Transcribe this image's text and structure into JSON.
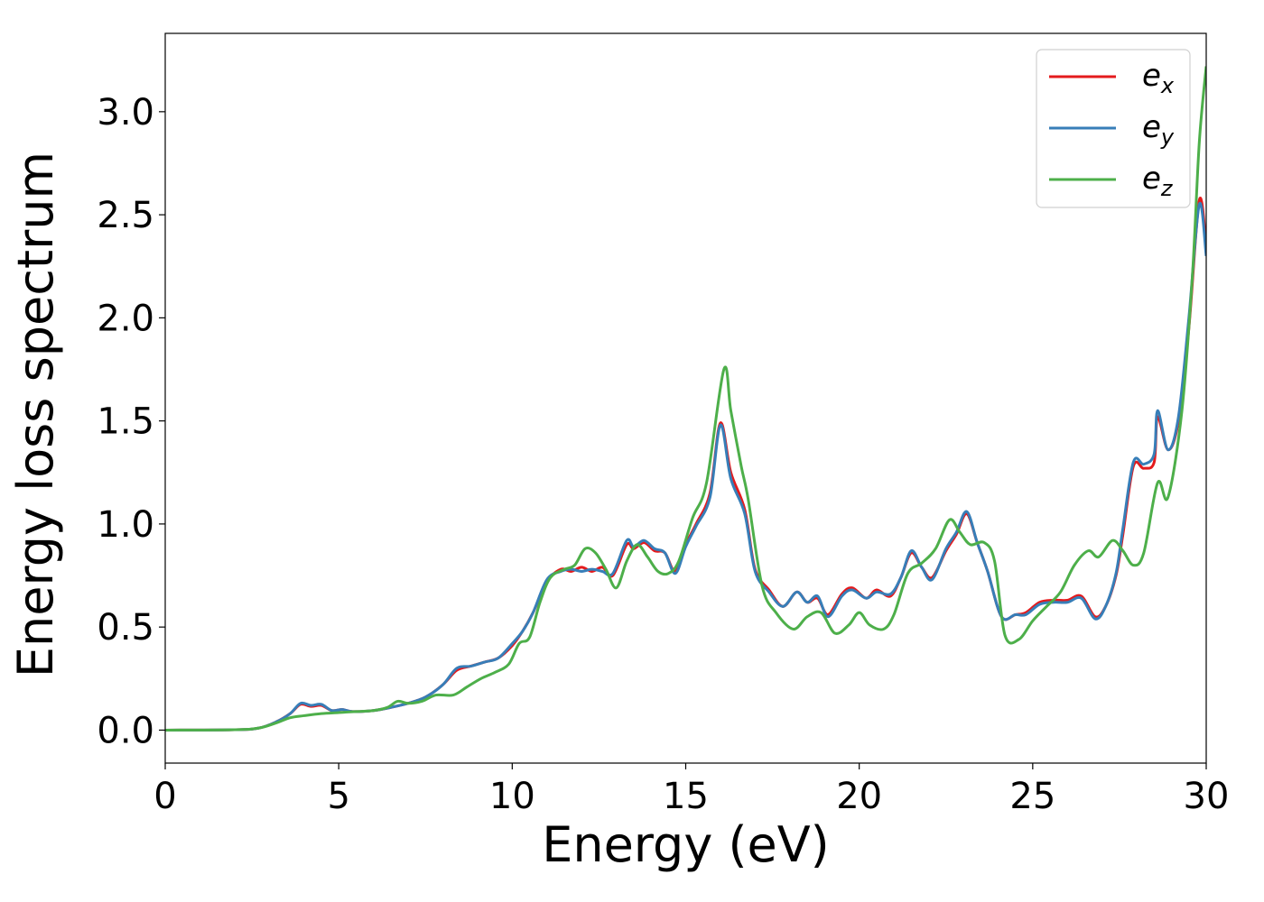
{
  "chart_data": {
    "type": "line",
    "title": "",
    "xlabel": "Energy (eV)",
    "ylabel": "Energy loss spectrum",
    "xlim": [
      0,
      30
    ],
    "ylim": [
      -0.16,
      3.38
    ],
    "xticks": [
      0,
      5,
      10,
      15,
      20,
      25,
      30
    ],
    "xtick_labels": [
      "0",
      "5",
      "10",
      "15",
      "20",
      "25",
      "30"
    ],
    "yticks": [
      0.0,
      0.5,
      1.0,
      1.5,
      2.0,
      2.5,
      3.0
    ],
    "ytick_labels": [
      "0.0",
      "0.5",
      "1.0",
      "1.5",
      "2.0",
      "2.5",
      "3.0"
    ],
    "grid": false,
    "legend_position": "top-right",
    "series": [
      {
        "name": "e_x",
        "legend_base": "e",
        "legend_sub": "x",
        "color": "#e41a1c",
        "points": [
          [
            0,
            0
          ],
          [
            2,
            0.002
          ],
          [
            2.7,
            0.01
          ],
          [
            3.2,
            0.04
          ],
          [
            3.6,
            0.08
          ],
          [
            3.9,
            0.125
          ],
          [
            4.2,
            0.115
          ],
          [
            4.5,
            0.12
          ],
          [
            4.8,
            0.095
          ],
          [
            5.1,
            0.1
          ],
          [
            5.4,
            0.09
          ],
          [
            6,
            0.095
          ],
          [
            6.5,
            0.11
          ],
          [
            7,
            0.13
          ],
          [
            7.5,
            0.16
          ],
          [
            8,
            0.22
          ],
          [
            8.4,
            0.29
          ],
          [
            8.8,
            0.31
          ],
          [
            9.2,
            0.33
          ],
          [
            9.6,
            0.35
          ],
          [
            10,
            0.41
          ],
          [
            10.3,
            0.48
          ],
          [
            10.6,
            0.57
          ],
          [
            11,
            0.72
          ],
          [
            11.4,
            0.78
          ],
          [
            11.7,
            0.77
          ],
          [
            12,
            0.79
          ],
          [
            12.3,
            0.77
          ],
          [
            12.6,
            0.79
          ],
          [
            12.9,
            0.75
          ],
          [
            13.3,
            0.9
          ],
          [
            13.5,
            0.88
          ],
          [
            13.8,
            0.91
          ],
          [
            14.1,
            0.87
          ],
          [
            14.4,
            0.86
          ],
          [
            14.7,
            0.77
          ],
          [
            15,
            0.9
          ],
          [
            15.3,
            1.0
          ],
          [
            15.7,
            1.15
          ],
          [
            16,
            1.49
          ],
          [
            16.3,
            1.25
          ],
          [
            16.7,
            1.07
          ],
          [
            17,
            0.78
          ],
          [
            17.4,
            0.68
          ],
          [
            17.8,
            0.6
          ],
          [
            18.2,
            0.67
          ],
          [
            18.5,
            0.62
          ],
          [
            18.8,
            0.64
          ],
          [
            19.1,
            0.56
          ],
          [
            19.5,
            0.66
          ],
          [
            19.8,
            0.69
          ],
          [
            20.2,
            0.64
          ],
          [
            20.5,
            0.68
          ],
          [
            20.9,
            0.65
          ],
          [
            21.2,
            0.74
          ],
          [
            21.5,
            0.86
          ],
          [
            21.8,
            0.79
          ],
          [
            22.1,
            0.74
          ],
          [
            22.5,
            0.87
          ],
          [
            22.8,
            0.95
          ],
          [
            23.1,
            1.05
          ],
          [
            23.4,
            0.91
          ],
          [
            23.7,
            0.77
          ],
          [
            24.1,
            0.55
          ],
          [
            24.5,
            0.56
          ],
          [
            24.8,
            0.57
          ],
          [
            25.2,
            0.62
          ],
          [
            25.6,
            0.63
          ],
          [
            26,
            0.63
          ],
          [
            26.4,
            0.65
          ],
          [
            26.8,
            0.55
          ],
          [
            27.1,
            0.6
          ],
          [
            27.4,
            0.75
          ],
          [
            27.6,
            0.95
          ],
          [
            27.9,
            1.28
          ],
          [
            28.2,
            1.27
          ],
          [
            28.5,
            1.3
          ],
          [
            28.6,
            1.52
          ],
          [
            28.9,
            1.36
          ],
          [
            29.2,
            1.5
          ],
          [
            29.5,
            1.95
          ],
          [
            29.8,
            2.57
          ],
          [
            30,
            2.35
          ]
        ]
      },
      {
        "name": "e_y",
        "legend_base": "e",
        "legend_sub": "y",
        "color": "#377eb8",
        "points": [
          [
            0,
            0
          ],
          [
            2,
            0.002
          ],
          [
            2.7,
            0.01
          ],
          [
            3.2,
            0.04
          ],
          [
            3.6,
            0.08
          ],
          [
            3.9,
            0.13
          ],
          [
            4.2,
            0.12
          ],
          [
            4.5,
            0.125
          ],
          [
            4.8,
            0.095
          ],
          [
            5.1,
            0.1
          ],
          [
            5.4,
            0.09
          ],
          [
            6,
            0.095
          ],
          [
            6.5,
            0.11
          ],
          [
            7,
            0.13
          ],
          [
            7.5,
            0.16
          ],
          [
            8,
            0.22
          ],
          [
            8.4,
            0.3
          ],
          [
            8.8,
            0.31
          ],
          [
            9.2,
            0.33
          ],
          [
            9.6,
            0.35
          ],
          [
            10,
            0.42
          ],
          [
            10.3,
            0.48
          ],
          [
            10.6,
            0.57
          ],
          [
            11,
            0.73
          ],
          [
            11.4,
            0.77
          ],
          [
            11.7,
            0.78
          ],
          [
            12,
            0.77
          ],
          [
            12.3,
            0.78
          ],
          [
            12.6,
            0.77
          ],
          [
            12.9,
            0.76
          ],
          [
            13.3,
            0.92
          ],
          [
            13.5,
            0.89
          ],
          [
            13.8,
            0.92
          ],
          [
            14.1,
            0.88
          ],
          [
            14.4,
            0.86
          ],
          [
            14.7,
            0.76
          ],
          [
            15,
            0.89
          ],
          [
            15.3,
            0.99
          ],
          [
            15.7,
            1.13
          ],
          [
            16,
            1.48
          ],
          [
            16.3,
            1.22
          ],
          [
            16.7,
            1.05
          ],
          [
            17,
            0.77
          ],
          [
            17.4,
            0.67
          ],
          [
            17.8,
            0.6
          ],
          [
            18.2,
            0.67
          ],
          [
            18.5,
            0.62
          ],
          [
            18.8,
            0.65
          ],
          [
            19.1,
            0.55
          ],
          [
            19.5,
            0.65
          ],
          [
            19.8,
            0.68
          ],
          [
            20.2,
            0.64
          ],
          [
            20.5,
            0.67
          ],
          [
            20.9,
            0.66
          ],
          [
            21.2,
            0.74
          ],
          [
            21.5,
            0.87
          ],
          [
            21.8,
            0.79
          ],
          [
            22.1,
            0.73
          ],
          [
            22.5,
            0.88
          ],
          [
            22.8,
            0.96
          ],
          [
            23.1,
            1.06
          ],
          [
            23.4,
            0.91
          ],
          [
            23.7,
            0.77
          ],
          [
            24.1,
            0.55
          ],
          [
            24.5,
            0.56
          ],
          [
            24.8,
            0.56
          ],
          [
            25.2,
            0.61
          ],
          [
            25.6,
            0.62
          ],
          [
            26,
            0.62
          ],
          [
            26.4,
            0.64
          ],
          [
            26.8,
            0.54
          ],
          [
            27.1,
            0.6
          ],
          [
            27.4,
            0.76
          ],
          [
            27.6,
            0.98
          ],
          [
            27.9,
            1.3
          ],
          [
            28.2,
            1.29
          ],
          [
            28.5,
            1.34
          ],
          [
            28.6,
            1.55
          ],
          [
            28.9,
            1.36
          ],
          [
            29.2,
            1.52
          ],
          [
            29.5,
            2.0
          ],
          [
            29.8,
            2.55
          ],
          [
            30,
            2.3
          ]
        ]
      },
      {
        "name": "e_z",
        "legend_base": "e",
        "legend_sub": "z",
        "color": "#4daf4a",
        "points": [
          [
            0,
            0
          ],
          [
            2,
            0.002
          ],
          [
            2.7,
            0.01
          ],
          [
            3.2,
            0.035
          ],
          [
            3.6,
            0.06
          ],
          [
            4,
            0.07
          ],
          [
            4.5,
            0.08
          ],
          [
            5,
            0.085
          ],
          [
            5.5,
            0.09
          ],
          [
            6,
            0.095
          ],
          [
            6.4,
            0.11
          ],
          [
            6.7,
            0.14
          ],
          [
            7,
            0.13
          ],
          [
            7.4,
            0.14
          ],
          [
            7.8,
            0.17
          ],
          [
            8.3,
            0.17
          ],
          [
            8.7,
            0.21
          ],
          [
            9.1,
            0.25
          ],
          [
            9.5,
            0.28
          ],
          [
            9.9,
            0.32
          ],
          [
            10.2,
            0.42
          ],
          [
            10.5,
            0.45
          ],
          [
            10.8,
            0.62
          ],
          [
            11.1,
            0.74
          ],
          [
            11.5,
            0.78
          ],
          [
            11.8,
            0.8
          ],
          [
            12.1,
            0.88
          ],
          [
            12.4,
            0.86
          ],
          [
            12.7,
            0.78
          ],
          [
            13,
            0.69
          ],
          [
            13.3,
            0.82
          ],
          [
            13.6,
            0.9
          ],
          [
            13.9,
            0.84
          ],
          [
            14.2,
            0.77
          ],
          [
            14.5,
            0.76
          ],
          [
            14.8,
            0.82
          ],
          [
            15.2,
            1.03
          ],
          [
            15.6,
            1.2
          ],
          [
            16.1,
            1.75
          ],
          [
            16.3,
            1.55
          ],
          [
            16.6,
            1.28
          ],
          [
            16.8,
            1.12
          ],
          [
            17.2,
            0.7
          ],
          [
            17.6,
            0.57
          ],
          [
            18.1,
            0.49
          ],
          [
            18.5,
            0.55
          ],
          [
            18.9,
            0.57
          ],
          [
            19.3,
            0.47
          ],
          [
            19.7,
            0.51
          ],
          [
            20,
            0.57
          ],
          [
            20.3,
            0.51
          ],
          [
            20.7,
            0.49
          ],
          [
            21,
            0.56
          ],
          [
            21.4,
            0.76
          ],
          [
            21.8,
            0.81
          ],
          [
            22.2,
            0.88
          ],
          [
            22.6,
            1.02
          ],
          [
            22.9,
            0.96
          ],
          [
            23.2,
            0.9
          ],
          [
            23.6,
            0.91
          ],
          [
            23.9,
            0.82
          ],
          [
            24.2,
            0.46
          ],
          [
            24.6,
            0.44
          ],
          [
            25,
            0.53
          ],
          [
            25.4,
            0.6
          ],
          [
            25.8,
            0.67
          ],
          [
            26.2,
            0.8
          ],
          [
            26.6,
            0.87
          ],
          [
            26.9,
            0.84
          ],
          [
            27.3,
            0.92
          ],
          [
            27.6,
            0.87
          ],
          [
            27.9,
            0.8
          ],
          [
            28.2,
            0.86
          ],
          [
            28.6,
            1.2
          ],
          [
            28.9,
            1.13
          ],
          [
            29.3,
            1.55
          ],
          [
            29.6,
            2.2
          ],
          [
            29.8,
            2.85
          ],
          [
            30,
            3.22
          ]
        ]
      }
    ]
  }
}
